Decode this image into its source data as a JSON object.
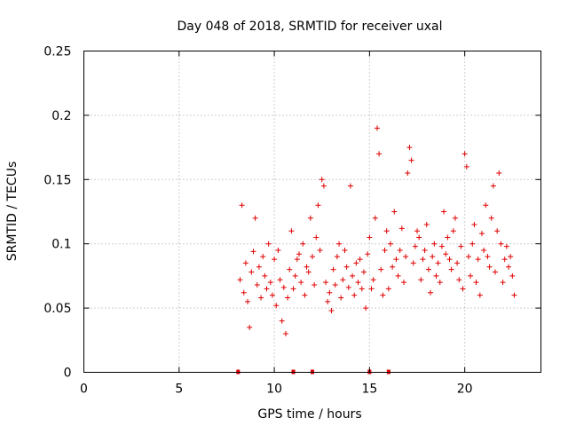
{
  "chart_data": {
    "type": "scatter",
    "title": "Day 048 of 2018, SRMTID for receiver uxal",
    "xlabel": "GPS time / hours",
    "ylabel": "SRMTID / TECUs",
    "xlim": [
      0,
      24
    ],
    "ylim": [
      0,
      0.25
    ],
    "xticks": [
      0,
      5,
      10,
      15,
      20
    ],
    "xtick_labels": [
      "0",
      "5",
      "10",
      "15",
      "20"
    ],
    "yticks": [
      0,
      0.05,
      0.1,
      0.15,
      0.2,
      0.25
    ],
    "ytick_labels": [
      "0",
      "0.05",
      "0.1",
      "0.15",
      "0.2",
      "0.25"
    ],
    "grid": true,
    "marker": "plus",
    "color": "#e00000",
    "zero_markers_x": [
      8.1,
      11.0,
      12.0,
      15.0,
      16.0
    ],
    "series": [
      {
        "x": [
          8.2,
          8.3,
          8.4,
          8.5,
          8.6,
          8.7,
          8.8,
          8.9,
          9.0,
          9.1,
          9.2,
          9.3,
          9.4,
          9.5,
          9.6,
          9.7,
          9.8,
          9.9,
          10.0,
          10.1,
          10.2,
          10.3,
          10.4,
          10.5,
          10.6,
          10.7,
          10.8,
          10.9,
          11.0,
          11.1,
          11.2,
          11.3,
          11.4,
          11.5,
          11.6,
          11.7,
          11.8,
          11.9,
          12.0,
          12.1,
          12.2,
          12.3,
          12.4,
          12.5,
          12.6,
          12.7,
          12.8,
          12.9,
          13.0,
          13.1,
          13.2,
          13.3,
          13.4,
          13.5,
          13.6,
          13.7,
          13.8,
          13.9,
          14.0,
          14.1,
          14.2,
          14.3,
          14.4,
          14.5,
          14.6,
          14.7,
          14.8,
          14.9,
          15.0,
          15.1,
          15.2,
          15.3,
          15.4,
          15.5,
          15.6,
          15.7,
          15.8,
          15.9,
          16.0,
          16.1,
          16.2,
          16.3,
          16.4,
          16.5,
          16.6,
          16.7,
          16.8,
          16.9,
          17.0,
          17.1,
          17.2,
          17.3,
          17.4,
          17.5,
          17.6,
          17.7,
          17.8,
          17.9,
          18.0,
          18.1,
          18.2,
          18.3,
          18.4,
          18.5,
          18.6,
          18.7,
          18.8,
          18.9,
          19.0,
          19.1,
          19.2,
          19.3,
          19.4,
          19.5,
          19.6,
          19.7,
          19.8,
          19.9,
          20.0,
          20.1,
          20.2,
          20.3,
          20.4,
          20.5,
          20.6,
          20.7,
          20.8,
          20.9,
          21.0,
          21.1,
          21.2,
          21.3,
          21.4,
          21.5,
          21.6,
          21.7,
          21.8,
          21.9,
          22.0,
          22.1,
          22.2,
          22.3,
          22.4,
          22.5,
          22.6
        ],
        "y": [
          0.072,
          0.13,
          0.062,
          0.085,
          0.055,
          0.035,
          0.078,
          0.094,
          0.12,
          0.068,
          0.082,
          0.058,
          0.09,
          0.075,
          0.065,
          0.1,
          0.07,
          0.06,
          0.088,
          0.052,
          0.095,
          0.072,
          0.04,
          0.066,
          0.03,
          0.058,
          0.08,
          0.11,
          0.065,
          0.075,
          0.088,
          0.092,
          0.07,
          0.1,
          0.06,
          0.082,
          0.078,
          0.12,
          0.09,
          0.068,
          0.105,
          0.13,
          0.095,
          0.15,
          0.145,
          0.07,
          0.055,
          0.062,
          0.048,
          0.08,
          0.068,
          0.09,
          0.1,
          0.058,
          0.072,
          0.095,
          0.082,
          0.066,
          0.145,
          0.075,
          0.06,
          0.085,
          0.07,
          0.088,
          0.065,
          0.078,
          0.05,
          0.092,
          0.105,
          0.065,
          0.072,
          0.12,
          0.19,
          0.17,
          0.08,
          0.06,
          0.095,
          0.11,
          0.065,
          0.1,
          0.082,
          0.125,
          0.088,
          0.075,
          0.095,
          0.112,
          0.07,
          0.09,
          0.155,
          0.175,
          0.165,
          0.085,
          0.098,
          0.11,
          0.105,
          0.072,
          0.088,
          0.095,
          0.115,
          0.08,
          0.062,
          0.09,
          0.1,
          0.075,
          0.085,
          0.07,
          0.098,
          0.125,
          0.092,
          0.105,
          0.088,
          0.08,
          0.11,
          0.12,
          0.085,
          0.072,
          0.098,
          0.065,
          0.17,
          0.16,
          0.09,
          0.075,
          0.1,
          0.115,
          0.07,
          0.088,
          0.06,
          0.108,
          0.095,
          0.13,
          0.09,
          0.082,
          0.12,
          0.145,
          0.078,
          0.11,
          0.155,
          0.1,
          0.07,
          0.088,
          0.098,
          0.082,
          0.09,
          0.075,
          0.06
        ],
        "name": ""
      }
    ]
  }
}
